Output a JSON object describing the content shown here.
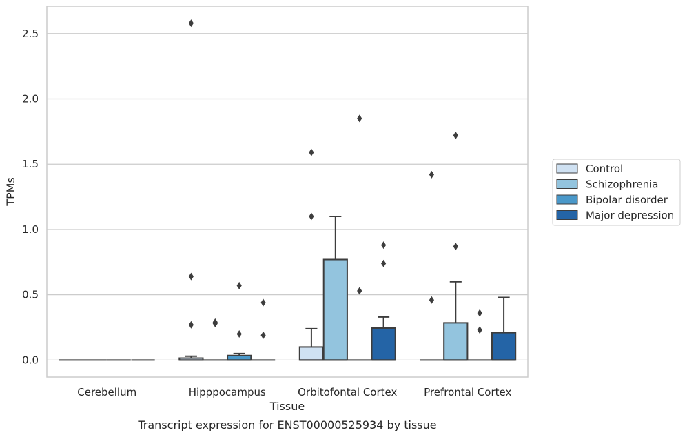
{
  "chart_data": {
    "type": "box",
    "title": "",
    "caption": "Transcript expression for ENST00000525934 by tissue",
    "xlabel": "Tissue",
    "ylabel": "TPMs",
    "categories": [
      "Cerebellum",
      "Hipppocampus",
      "Orbitofontal Cortex",
      "Prefrontal Cortex"
    ],
    "ylim": [
      -0.13,
      2.71
    ],
    "yticks": [
      0.0,
      0.5,
      1.0,
      1.5,
      2.0,
      2.5
    ],
    "ytick_labels": [
      "0.0",
      "0.5",
      "1.0",
      "1.5",
      "2.0",
      "2.5"
    ],
    "grid": "horizontal",
    "legend_position": "right",
    "series": [
      {
        "name": "Control",
        "color": "#cfe1f2",
        "boxes": [
          {
            "q1": 0,
            "median": 0,
            "q3": 0,
            "whisker_low": 0,
            "whisker_high": 0,
            "outliers": []
          },
          {
            "q1": 0,
            "median": 0,
            "q3": 0.015,
            "whisker_low": 0,
            "whisker_high": 0.03,
            "outliers": [
              0.27,
              0.64,
              2.58
            ]
          },
          {
            "q1": 0,
            "median": 0,
            "q3": 0.1,
            "whisker_low": 0,
            "whisker_high": 0.24,
            "outliers": [
              1.1,
              1.59
            ]
          },
          {
            "q1": 0,
            "median": 0,
            "q3": 0,
            "whisker_low": 0,
            "whisker_high": 0,
            "outliers": [
              0.46,
              1.42
            ]
          }
        ]
      },
      {
        "name": "Schizophrenia",
        "color": "#93c4de",
        "boxes": [
          {
            "q1": 0,
            "median": 0,
            "q3": 0,
            "whisker_low": 0,
            "whisker_high": 0,
            "outliers": []
          },
          {
            "q1": 0,
            "median": 0,
            "q3": 0,
            "whisker_low": 0,
            "whisker_high": 0,
            "outliers": [
              0.28,
              0.29
            ]
          },
          {
            "q1": 0,
            "median": 0,
            "q3": 0.77,
            "whisker_low": 0,
            "whisker_high": 1.1,
            "outliers": []
          },
          {
            "q1": 0,
            "median": 0,
            "q3": 0.285,
            "whisker_low": 0,
            "whisker_high": 0.6,
            "outliers": [
              0.87,
              1.72
            ]
          }
        ]
      },
      {
        "name": "Bipolar disorder",
        "color": "#4a98c9",
        "boxes": [
          {
            "q1": 0,
            "median": 0,
            "q3": 0,
            "whisker_low": 0,
            "whisker_high": 0,
            "outliers": []
          },
          {
            "q1": 0,
            "median": 0,
            "q3": 0.035,
            "whisker_low": 0,
            "whisker_high": 0.05,
            "outliers": [
              0.2,
              0.57
            ]
          },
          {
            "q1": 0,
            "median": 0,
            "q3": 0,
            "whisker_low": 0,
            "whisker_high": 0,
            "outliers": [
              0.53,
              1.85
            ]
          },
          {
            "q1": 0,
            "median": 0,
            "q3": 0,
            "whisker_low": 0,
            "whisker_high": 0,
            "outliers": [
              0.23,
              0.36
            ]
          }
        ]
      },
      {
        "name": "Major depression",
        "color": "#2464a6",
        "boxes": [
          {
            "q1": 0,
            "median": 0,
            "q3": 0,
            "whisker_low": 0,
            "whisker_high": 0,
            "outliers": []
          },
          {
            "q1": 0,
            "median": 0,
            "q3": 0,
            "whisker_low": 0,
            "whisker_high": 0,
            "outliers": [
              0.19,
              0.44
            ]
          },
          {
            "q1": 0,
            "median": 0,
            "q3": 0.245,
            "whisker_low": 0,
            "whisker_high": 0.33,
            "outliers": [
              0.74,
              0.88
            ]
          },
          {
            "q1": 0,
            "median": 0,
            "q3": 0.21,
            "whisker_low": 0,
            "whisker_high": 0.48,
            "outliers": []
          }
        ]
      }
    ]
  }
}
